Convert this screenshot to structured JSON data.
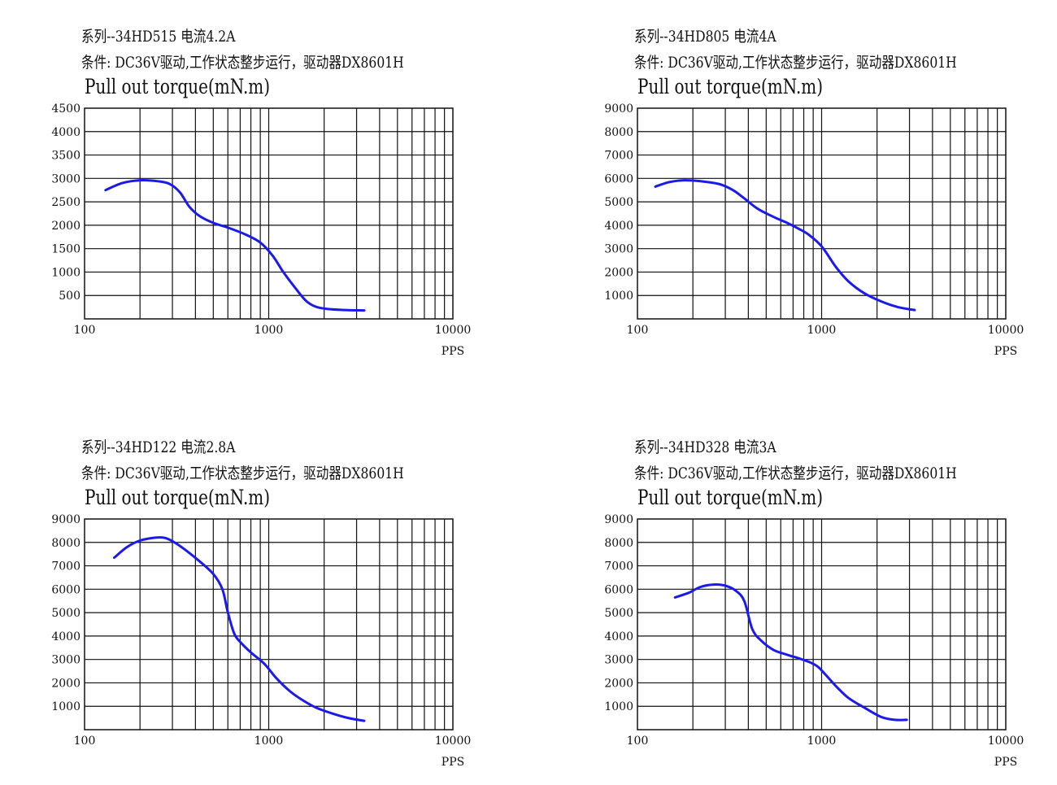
{
  "chart_data": [
    {
      "type": "line",
      "title_line1": "系列--34HD515 电流4.2A",
      "title_line2": "条件: DC36V驱动,工作状态整步运行，驱动器DX8601H",
      "title_line3": "Pull out torque(mN.m)",
      "xlabel": "PPS",
      "x_scale": "log",
      "xlim": [
        100,
        10000
      ],
      "x_tick_labels": [
        "100",
        "1000",
        "10000"
      ],
      "ylim": [
        0,
        4500
      ],
      "y_tick_labels": [
        "500",
        "1000",
        "1500",
        "2000",
        "2500",
        "3000",
        "3500",
        "4000",
        "4500"
      ],
      "grid": true,
      "line_color": "#1a1aee",
      "series": [
        {
          "x": [
            130,
            160,
            200,
            250,
            290,
            330,
            370,
            420,
            500,
            600,
            750,
            900,
            1050,
            1200,
            1400,
            1600,
            1800,
            2100,
            2600,
            3300
          ],
          "values": [
            2750,
            2900,
            2960,
            2940,
            2880,
            2700,
            2400,
            2200,
            2050,
            1950,
            1800,
            1630,
            1350,
            1000,
            650,
            380,
            260,
            210,
            190,
            180
          ]
        }
      ]
    },
    {
      "type": "line",
      "title_line1": "系列--34HD805 电流4A",
      "title_line2": "条件: DC36V驱动,工作状态整步运行，驱动器DX8601H",
      "title_line3": "Pull out torque(mN.m)",
      "xlabel": "PPS",
      "x_scale": "log",
      "xlim": [
        100,
        10000
      ],
      "x_tick_labels": [
        "100",
        "1000",
        "10000"
      ],
      "ylim": [
        0,
        9000
      ],
      "y_tick_labels": [
        "1000",
        "2000",
        "3000",
        "4000",
        "5000",
        "6000",
        "7000",
        "8000",
        "9000"
      ],
      "grid": true,
      "line_color": "#1a1aee",
      "series": [
        {
          "x": [
            125,
            150,
            180,
            220,
            280,
            330,
            380,
            450,
            550,
            650,
            750,
            850,
            1000,
            1200,
            1400,
            1700,
            2100,
            2600,
            3200
          ],
          "values": [
            5650,
            5850,
            5920,
            5880,
            5750,
            5500,
            5150,
            4700,
            4350,
            4100,
            3850,
            3600,
            3100,
            2200,
            1600,
            1100,
            750,
            500,
            380
          ]
        }
      ]
    },
    {
      "type": "line",
      "title_line1": "系列--34HD122 电流2.8A",
      "title_line2": "条件: DC36V驱动,工作状态整步运行，驱动器DX8601H",
      "title_line3": "Pull out torque(mN.m)",
      "xlabel": "PPS",
      "x_scale": "log",
      "xlim": [
        100,
        10000
      ],
      "x_tick_labels": [
        "100",
        "1000",
        "10000"
      ],
      "ylim": [
        0,
        9000
      ],
      "y_tick_labels": [
        "1000",
        "2000",
        "3000",
        "4000",
        "5000",
        "6000",
        "7000",
        "8000",
        "9000"
      ],
      "grid": true,
      "line_color": "#1a1aee",
      "series": [
        {
          "x": [
            145,
            170,
            200,
            240,
            270,
            300,
            350,
            420,
            500,
            560,
            600,
            650,
            700,
            800,
            950,
            1100,
            1300,
            1500,
            1800,
            2200,
            2700,
            3300
          ],
          "values": [
            7350,
            7800,
            8080,
            8200,
            8200,
            8050,
            7700,
            7200,
            6650,
            6000,
            5000,
            4100,
            3750,
            3300,
            2800,
            2200,
            1650,
            1300,
            950,
            700,
            500,
            380
          ]
        }
      ]
    },
    {
      "type": "line",
      "title_line1": "系列--34HD328 电流3A",
      "title_line2": "条件: DC36V驱动,工作状态整步运行，驱动器DX8601H",
      "title_line3": "Pull out torque(mN.m)",
      "xlabel": "PPS",
      "x_scale": "log",
      "xlim": [
        100,
        10000
      ],
      "x_tick_labels": [
        "100",
        "1000",
        "10000"
      ],
      "ylim": [
        0,
        9000
      ],
      "y_tick_labels": [
        "1000",
        "2000",
        "3000",
        "4000",
        "5000",
        "6000",
        "7000",
        "8000",
        "9000"
      ],
      "grid": true,
      "line_color": "#1a1aee",
      "series": [
        {
          "x": [
            160,
            190,
            220,
            260,
            300,
            340,
            380,
            420,
            470,
            550,
            650,
            750,
            850,
            950,
            1050,
            1200,
            1400,
            1700,
            2100,
            2500,
            2900
          ],
          "values": [
            5650,
            5850,
            6100,
            6200,
            6150,
            5950,
            5500,
            4300,
            3800,
            3400,
            3200,
            3050,
            2900,
            2700,
            2350,
            1850,
            1350,
            950,
            550,
            420,
            420
          ]
        }
      ]
    }
  ]
}
